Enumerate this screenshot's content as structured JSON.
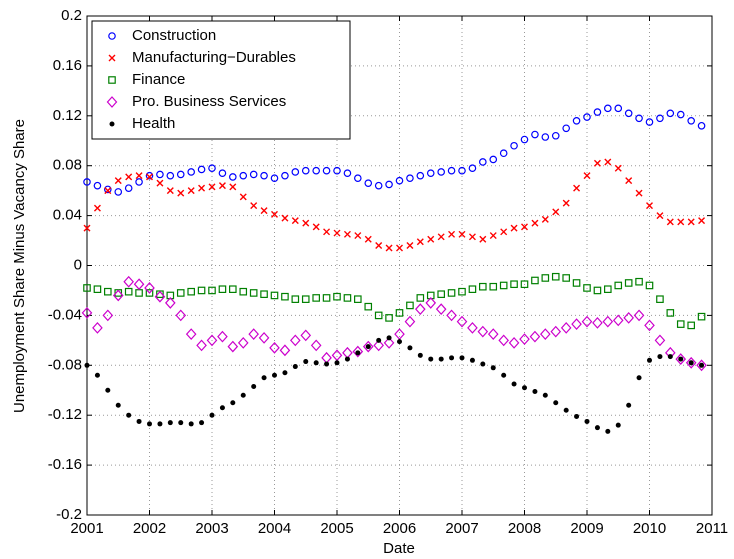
{
  "chart_data": {
    "type": "scatter",
    "xlabel": "Date",
    "ylabel": "Unemployment Share Minus Vacancy Share",
    "xlim": [
      2001,
      2011
    ],
    "xticks": [
      2001,
      2002,
      2003,
      2004,
      2005,
      2006,
      2007,
      2008,
      2009,
      2010,
      2011
    ],
    "ylim": [
      -0.2,
      0.2
    ],
    "yticks": [
      -0.2,
      -0.16,
      -0.12,
      -0.08,
      -0.04,
      0,
      0.04,
      0.08,
      0.12,
      0.16,
      0.2
    ],
    "grid": true,
    "legend": "upper left",
    "x": [
      2001,
      2001.167,
      2001.333,
      2001.5,
      2001.667,
      2001.833,
      2002,
      2002.167,
      2002.333,
      2002.5,
      2002.667,
      2002.833,
      2003,
      2003.167,
      2003.333,
      2003.5,
      2003.667,
      2003.833,
      2004,
      2004.167,
      2004.333,
      2004.5,
      2004.667,
      2004.833,
      2005,
      2005.167,
      2005.333,
      2005.5,
      2005.667,
      2005.833,
      2006,
      2006.167,
      2006.333,
      2006.5,
      2006.667,
      2006.833,
      2007,
      2007.167,
      2007.333,
      2007.5,
      2007.667,
      2007.833,
      2008,
      2008.167,
      2008.333,
      2008.5,
      2008.667,
      2008.833,
      2009,
      2009.167,
      2009.333,
      2009.5,
      2009.667,
      2009.833,
      2010,
      2010.167,
      2010.333,
      2010.5,
      2010.667,
      2010.833
    ],
    "series": [
      {
        "name": "Construction",
        "color": "#0000ff",
        "marker": "circle",
        "values": [
          0.067,
          0.064,
          0.061,
          0.059,
          0.062,
          0.067,
          0.072,
          0.073,
          0.072,
          0.073,
          0.075,
          0.077,
          0.078,
          0.074,
          0.071,
          0.072,
          0.073,
          0.072,
          0.07,
          0.072,
          0.075,
          0.076,
          0.076,
          0.076,
          0.076,
          0.074,
          0.07,
          0.066,
          0.064,
          0.065,
          0.068,
          0.07,
          0.072,
          0.074,
          0.075,
          0.076,
          0.076,
          0.078,
          0.083,
          0.085,
          0.09,
          0.096,
          0.101,
          0.105,
          0.103,
          0.104,
          0.11,
          0.116,
          0.119,
          0.123,
          0.126,
          0.126,
          0.122,
          0.118,
          0.115,
          0.118,
          0.122,
          0.121,
          0.116,
          0.112
        ]
      },
      {
        "name": "Manufacturing−Durables",
        "color": "#ff0000",
        "marker": "x",
        "values": [
          0.03,
          0.046,
          0.06,
          0.068,
          0.071,
          0.072,
          0.071,
          0.066,
          0.06,
          0.058,
          0.06,
          0.062,
          0.063,
          0.064,
          0.063,
          0.055,
          0.048,
          0.044,
          0.041,
          0.038,
          0.036,
          0.034,
          0.031,
          0.027,
          0.026,
          0.025,
          0.024,
          0.021,
          0.016,
          0.014,
          0.014,
          0.016,
          0.019,
          0.021,
          0.023,
          0.025,
          0.025,
          0.023,
          0.021,
          0.024,
          0.027,
          0.03,
          0.031,
          0.034,
          0.037,
          0.043,
          0.05,
          0.062,
          0.072,
          0.082,
          0.083,
          0.078,
          0.068,
          0.058,
          0.048,
          0.04,
          0.035,
          0.035,
          0.035,
          0.036
        ]
      },
      {
        "name": "Finance",
        "color": "#008000",
        "marker": "square",
        "values": [
          -0.018,
          -0.019,
          -0.021,
          -0.022,
          -0.021,
          -0.022,
          -0.022,
          -0.023,
          -0.024,
          -0.022,
          -0.021,
          -0.02,
          -0.02,
          -0.019,
          -0.019,
          -0.021,
          -0.022,
          -0.023,
          -0.024,
          -0.025,
          -0.027,
          -0.027,
          -0.026,
          -0.026,
          -0.025,
          -0.026,
          -0.027,
          -0.033,
          -0.04,
          -0.042,
          -0.038,
          -0.032,
          -0.026,
          -0.024,
          -0.023,
          -0.022,
          -0.021,
          -0.019,
          -0.017,
          -0.017,
          -0.016,
          -0.015,
          -0.015,
          -0.012,
          -0.01,
          -0.009,
          -0.01,
          -0.014,
          -0.018,
          -0.02,
          -0.019,
          -0.016,
          -0.014,
          -0.013,
          -0.016,
          -0.027,
          -0.038,
          -0.047,
          -0.048,
          -0.041
        ]
      },
      {
        "name": "Pro. Business Services",
        "color": "#cc00cc",
        "marker": "diamond",
        "values": [
          -0.038,
          -0.05,
          -0.04,
          -0.024,
          -0.013,
          -0.015,
          -0.018,
          -0.025,
          -0.03,
          -0.04,
          -0.055,
          -0.064,
          -0.06,
          -0.057,
          -0.065,
          -0.062,
          -0.055,
          -0.058,
          -0.066,
          -0.068,
          -0.06,
          -0.056,
          -0.064,
          -0.074,
          -0.072,
          -0.07,
          -0.069,
          -0.065,
          -0.064,
          -0.062,
          -0.055,
          -0.045,
          -0.035,
          -0.03,
          -0.035,
          -0.04,
          -0.045,
          -0.05,
          -0.053,
          -0.055,
          -0.06,
          -0.062,
          -0.059,
          -0.057,
          -0.055,
          -0.053,
          -0.05,
          -0.047,
          -0.045,
          -0.046,
          -0.045,
          -0.044,
          -0.042,
          -0.04,
          -0.048,
          -0.06,
          -0.07,
          -0.075,
          -0.078,
          -0.08
        ]
      },
      {
        "name": "Health",
        "color": "#000000",
        "marker": "dot",
        "values": [
          -0.08,
          -0.088,
          -0.1,
          -0.112,
          -0.12,
          -0.125,
          -0.127,
          -0.127,
          -0.126,
          -0.126,
          -0.127,
          -0.126,
          -0.12,
          -0.114,
          -0.11,
          -0.104,
          -0.097,
          -0.09,
          -0.088,
          -0.086,
          -0.081,
          -0.077,
          -0.078,
          -0.079,
          -0.078,
          -0.075,
          -0.07,
          -0.065,
          -0.06,
          -0.058,
          -0.061,
          -0.066,
          -0.072,
          -0.075,
          -0.075,
          -0.074,
          -0.074,
          -0.076,
          -0.079,
          -0.082,
          -0.088,
          -0.095,
          -0.098,
          -0.101,
          -0.104,
          -0.11,
          -0.116,
          -0.121,
          -0.125,
          -0.13,
          -0.133,
          -0.128,
          -0.112,
          -0.09,
          -0.076,
          -0.073,
          -0.073,
          -0.075,
          -0.078,
          -0.08
        ]
      }
    ]
  }
}
